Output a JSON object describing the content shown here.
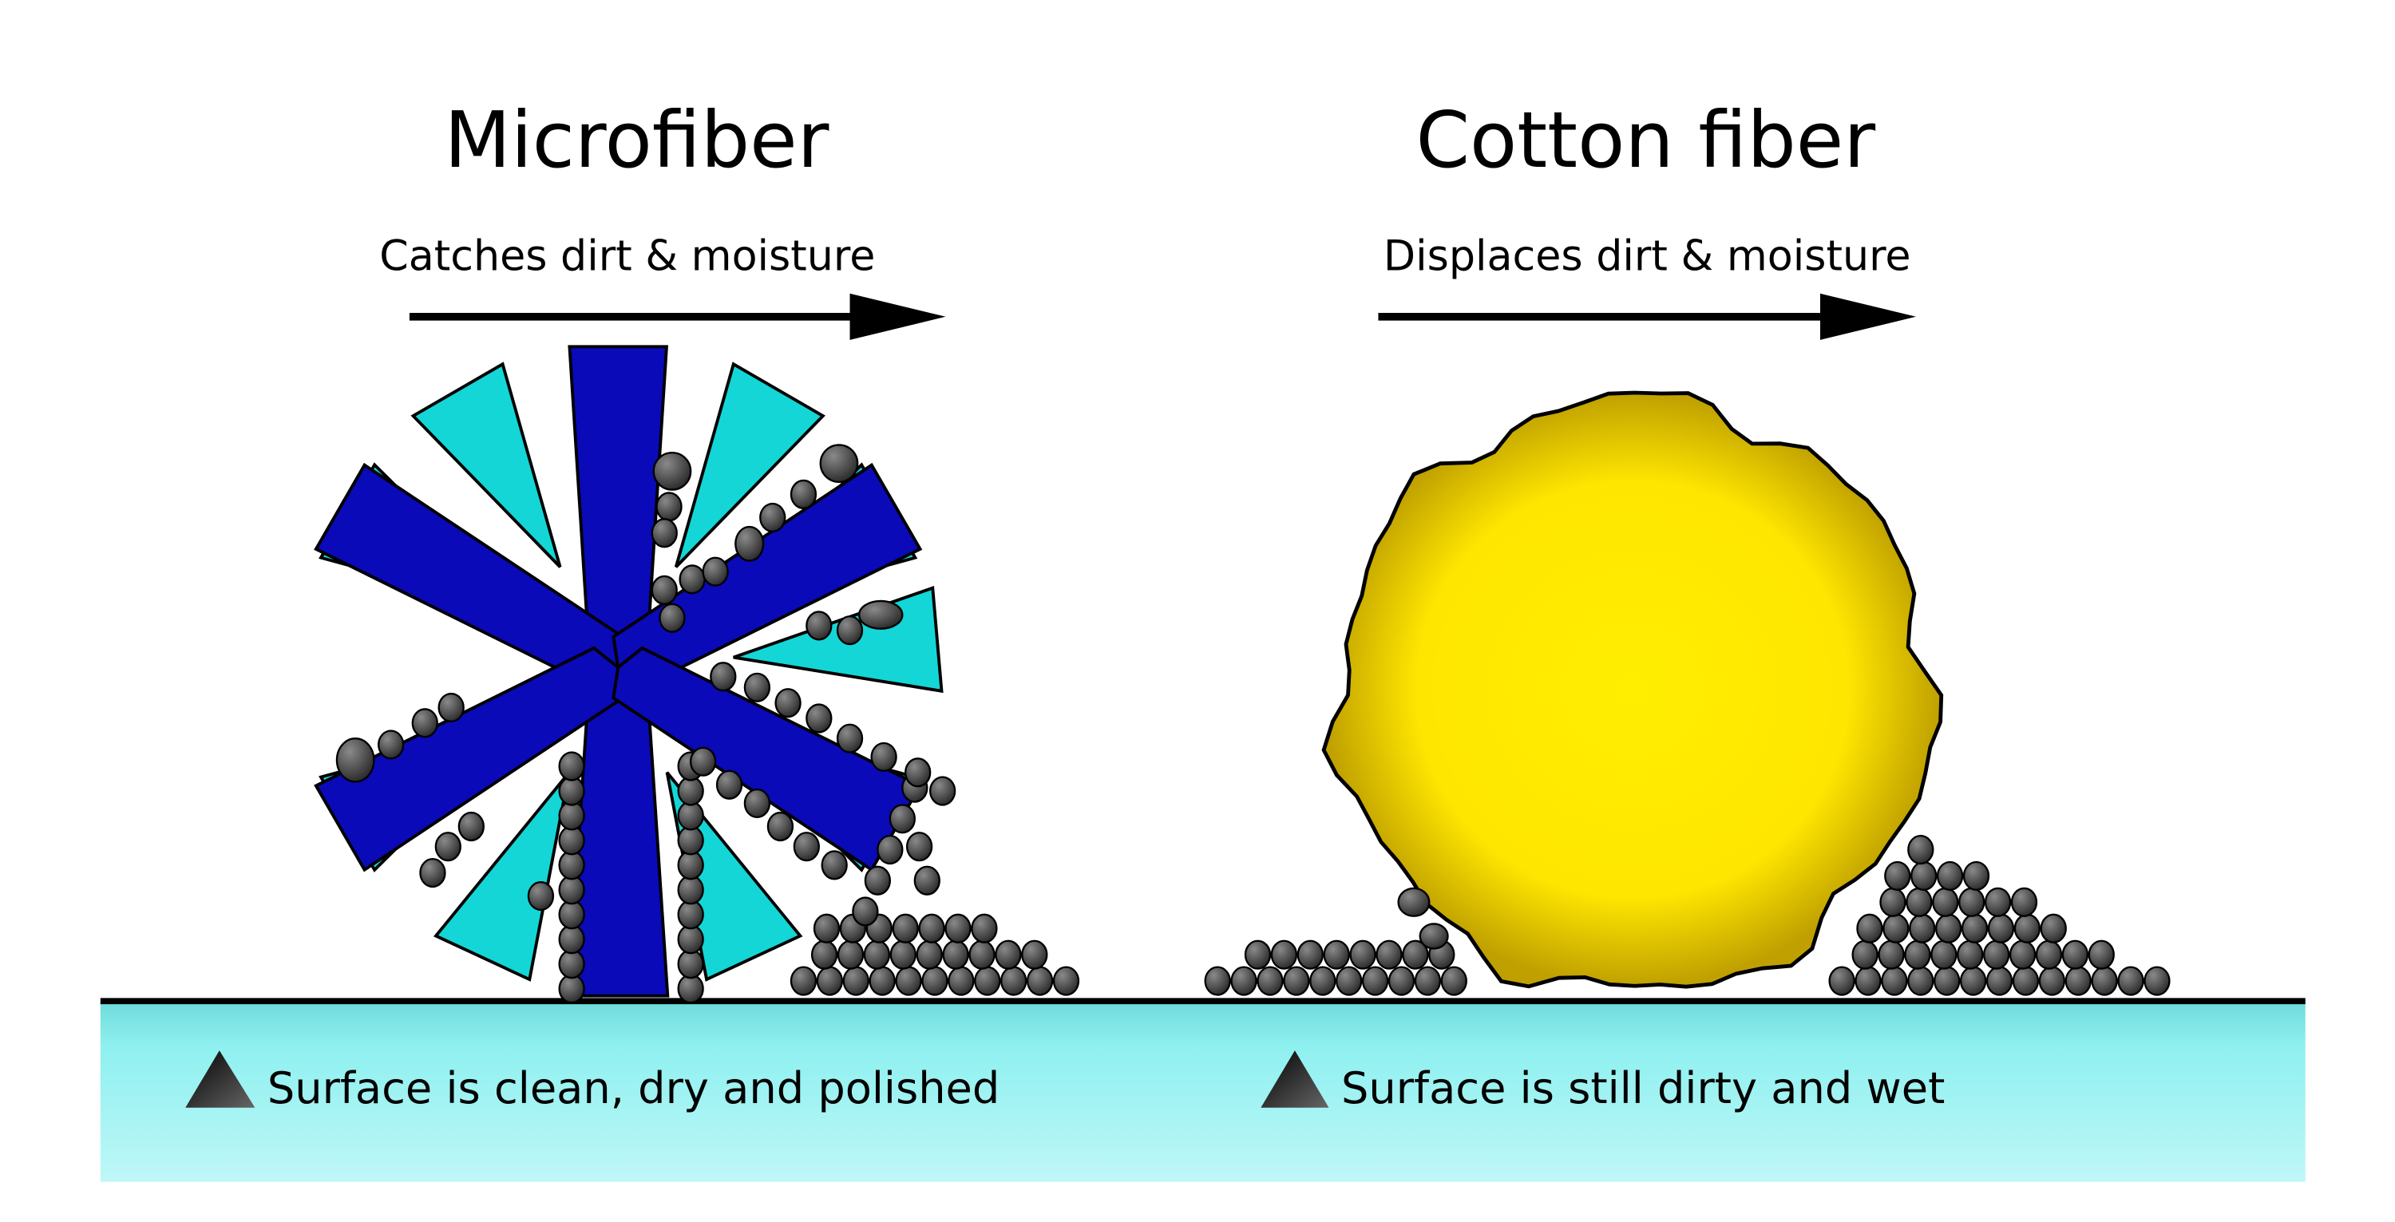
{
  "microfiber": {
    "title": "Microfiber",
    "caption": "Catches dirt & moisture",
    "note": "Surface is clean, dry and polished"
  },
  "cotton": {
    "title": "Cotton fiber",
    "caption": "Displaces dirt & moisture",
    "note": "Surface is still dirty and wet"
  }
}
